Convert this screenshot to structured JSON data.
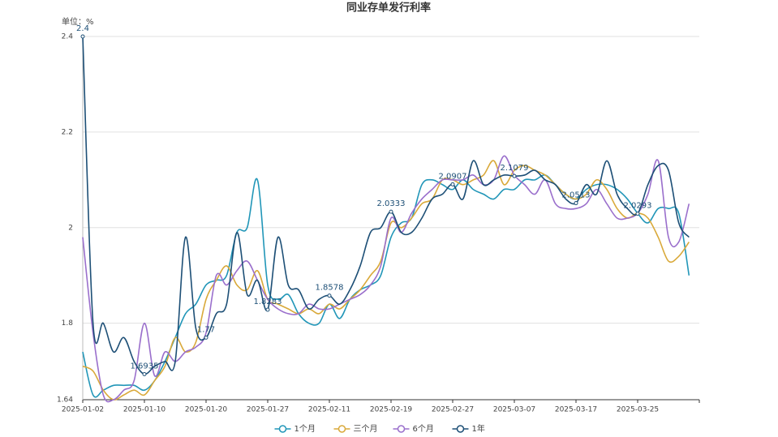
{
  "chart_data": {
    "type": "line",
    "title": "同业存单发行利率",
    "unit_label": "单位：%",
    "categories": [
      "2025-01-02",
      null,
      null,
      null,
      null,
      null,
      "2025-01-10",
      null,
      null,
      null,
      null,
      null,
      "2025-01-20",
      null,
      null,
      null,
      null,
      null,
      "2025-01-27",
      null,
      null,
      null,
      null,
      null,
      "2025-02-11",
      null,
      null,
      null,
      null,
      null,
      "2025-02-19",
      null,
      null,
      null,
      null,
      null,
      "2025-02-27",
      null,
      null,
      null,
      null,
      null,
      "2025-03-07",
      null,
      null,
      null,
      null,
      null,
      "2025-03-17",
      null,
      null,
      null,
      null,
      null,
      "2025-03-25",
      null,
      null,
      null,
      null,
      null
    ],
    "ylim": [
      1.64,
      2.4
    ],
    "yticks": [
      1.64,
      1.8,
      2,
      2.2,
      2.4
    ],
    "grid": true,
    "legend": "bottom",
    "series": [
      {
        "name": "1个月",
        "color": "#2196b8",
        "values": [
          1.74,
          1.65,
          1.66,
          1.67,
          1.67,
          1.67,
          1.66,
          1.68,
          1.72,
          1.77,
          1.82,
          1.84,
          1.88,
          1.89,
          1.9,
          1.99,
          2.0,
          2.1,
          1.88,
          1.85,
          1.86,
          1.82,
          1.8,
          1.8,
          1.84,
          1.81,
          1.85,
          1.87,
          1.88,
          1.9,
          1.98,
          2.01,
          2.02,
          2.09,
          2.1,
          2.09,
          2.08,
          2.1,
          2.08,
          2.07,
          2.06,
          2.08,
          2.08,
          2.1,
          2.1,
          2.11,
          2.09,
          2.07,
          2.06,
          2.08,
          2.09,
          2.09,
          2.08,
          2.06,
          2.03,
          2.01,
          2.04,
          2.04,
          2.03,
          1.9
        ]
      },
      {
        "name": "三个月",
        "color": "#d9a93a",
        "values": [
          1.71,
          1.7,
          1.66,
          1.64,
          1.65,
          1.66,
          1.65,
          1.68,
          1.71,
          1.77,
          1.74,
          1.76,
          1.85,
          1.89,
          1.92,
          1.88,
          1.87,
          1.91,
          1.85,
          1.84,
          1.83,
          1.82,
          1.83,
          1.82,
          1.84,
          1.83,
          1.85,
          1.87,
          1.9,
          1.93,
          2.01,
          2.0,
          2.02,
          2.05,
          2.06,
          2.1,
          2.1,
          2.09,
          2.1,
          2.11,
          2.14,
          2.09,
          2.12,
          2.13,
          2.12,
          2.11,
          2.09,
          2.07,
          2.06,
          2.07,
          2.1,
          2.08,
          2.04,
          2.02,
          2.03,
          2.02,
          1.98,
          1.93,
          1.94,
          1.97
        ]
      },
      {
        "name": "6个月",
        "color": "#9a6fcc",
        "values": [
          1.98,
          1.78,
          1.65,
          1.64,
          1.66,
          1.68,
          1.8,
          1.69,
          1.74,
          1.72,
          1.74,
          1.75,
          1.78,
          1.9,
          1.88,
          1.91,
          1.93,
          1.89,
          1.85,
          1.83,
          1.82,
          1.82,
          1.84,
          1.83,
          1.83,
          1.84,
          1.85,
          1.86,
          1.88,
          1.92,
          2.02,
          1.99,
          2.03,
          2.06,
          2.08,
          2.1,
          2.1,
          2.1,
          2.11,
          2.09,
          2.1,
          2.15,
          2.11,
          2.09,
          2.07,
          2.1,
          2.05,
          2.04,
          2.04,
          2.05,
          2.08,
          2.05,
          2.02,
          2.02,
          2.03,
          2.07,
          2.14,
          1.98,
          1.97,
          2.05
        ]
      },
      {
        "name": "1年",
        "color": "#1d4f76",
        "values": [
          2.4,
          1.8,
          1.8,
          1.74,
          1.77,
          1.72,
          1.6935,
          1.71,
          1.72,
          1.72,
          1.98,
          1.79,
          1.77,
          1.82,
          1.84,
          1.99,
          1.86,
          1.89,
          1.8283,
          1.98,
          1.88,
          1.87,
          1.83,
          1.85,
          1.8578,
          1.84,
          1.87,
          1.92,
          1.99,
          2.0,
          2.0333,
          1.99,
          1.99,
          2.02,
          2.06,
          2.07,
          2.0907,
          2.06,
          2.14,
          2.09,
          2.1,
          2.11,
          2.1079,
          2.11,
          2.12,
          2.1,
          2.09,
          2.06,
          2.0513,
          2.09,
          2.07,
          2.14,
          2.07,
          2.04,
          2.0293,
          2.09,
          2.13,
          2.12,
          2.01,
          1.98
        ],
        "value_labels": [
          "2.4",
          null,
          null,
          null,
          null,
          null,
          "1.6935",
          null,
          null,
          null,
          null,
          null,
          "1.77",
          null,
          null,
          null,
          null,
          null,
          "1.8283",
          null,
          null,
          null,
          null,
          null,
          "1.8578",
          null,
          null,
          null,
          null,
          null,
          "2.0333",
          null,
          null,
          null,
          null,
          null,
          "2.0907",
          null,
          null,
          null,
          null,
          null,
          "2.1079",
          null,
          null,
          null,
          null,
          null,
          "2.0513",
          null,
          null,
          null,
          null,
          null,
          "2.0293",
          null,
          null,
          null,
          null,
          null
        ]
      }
    ]
  }
}
